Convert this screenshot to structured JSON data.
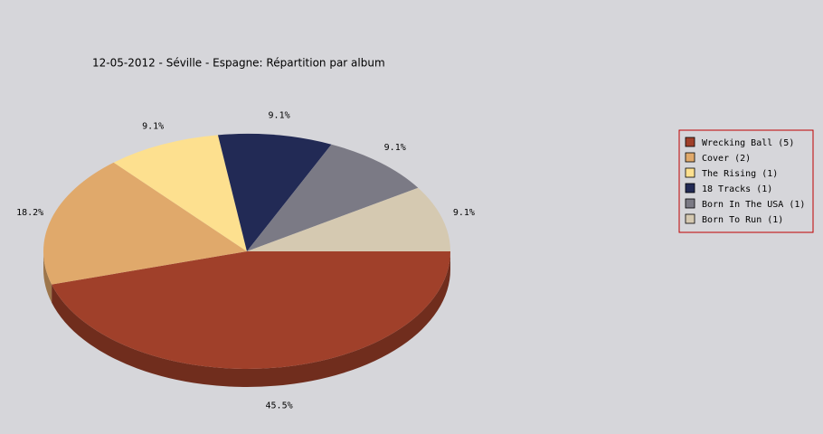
{
  "chart_data": {
    "type": "pie",
    "title": "12-05-2012 - Séville - Espagne:  Répartition par album",
    "categories": [
      "Wrecking Ball (5)",
      "Cover (2)",
      "The Rising (1)",
      "18 Tracks (1)",
      "Born In The USA (1)",
      "Born To Run (1)"
    ],
    "values": [
      45.5,
      18.2,
      9.1,
      9.1,
      9.1,
      9.1
    ],
    "value_labels": [
      "45.5%",
      "18.2%",
      "9.1%",
      "9.1%",
      "9.1%",
      "9.1%"
    ],
    "colors": [
      "#a0402a",
      "#e0a96b",
      "#fde08f",
      "#222a55",
      "#7b7a85",
      "#d5c9b1"
    ]
  }
}
